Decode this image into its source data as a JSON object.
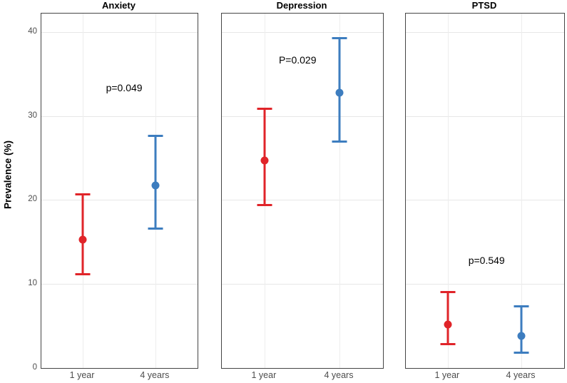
{
  "figure": {
    "y_axis_title": "Prevalence (%)",
    "x_categories": [
      "1 year",
      "4 years"
    ],
    "y_ticks": [
      0,
      10,
      20,
      30,
      40
    ]
  },
  "colors": {
    "year1": "#e02429",
    "year4": "#3d7dbf",
    "gridline": "#e7e7e7",
    "panel_border": "#454545",
    "tick_label": "#4d4d4d"
  },
  "chart_data": [
    {
      "type": "scatter",
      "title": "Anxiety",
      "p_label": "p=0.049",
      "p_label_pos": {
        "x_frac": 0.53,
        "y_value": 33.4
      },
      "xlabel": "",
      "ylabel": "Prevalence (%)",
      "ylim": [
        0,
        42.2
      ],
      "y_ticks": [
        0,
        10,
        20,
        30,
        40
      ],
      "categories": [
        "1 year",
        "4 years"
      ],
      "series": [
        {
          "name": "1 year",
          "color_key": "year1",
          "value": 15.3,
          "ci_low": 11.0,
          "ci_high": 20.8
        },
        {
          "name": "4 years",
          "color_key": "year4",
          "value": 21.7,
          "ci_low": 16.5,
          "ci_high": 27.8
        }
      ]
    },
    {
      "type": "scatter",
      "title": "Depression",
      "p_label": "P=0.029",
      "p_label_pos": {
        "x_frac": 0.47,
        "y_value": 36.7
      },
      "xlabel": "",
      "ylabel": "Prevalence (%)",
      "ylim": [
        0,
        42.2
      ],
      "y_ticks": [
        0,
        10,
        20,
        30,
        40
      ],
      "categories": [
        "1 year",
        "4 years"
      ],
      "series": [
        {
          "name": "1 year",
          "color_key": "year1",
          "value": 24.7,
          "ci_low": 19.3,
          "ci_high": 31.0
        },
        {
          "name": "4 years",
          "color_key": "year4",
          "value": 32.8,
          "ci_low": 26.8,
          "ci_high": 39.4
        }
      ]
    },
    {
      "type": "scatter",
      "title": "PTSD",
      "p_label": "p=0.549",
      "p_label_pos": {
        "x_frac": 0.51,
        "y_value": 12.8
      },
      "xlabel": "",
      "ylabel": "Prevalence (%)",
      "ylim": [
        0,
        42.2
      ],
      "y_ticks": [
        0,
        10,
        20,
        30,
        40
      ],
      "categories": [
        "1 year",
        "4 years"
      ],
      "series": [
        {
          "name": "1 year",
          "color_key": "year1",
          "value": 5.2,
          "ci_low": 2.7,
          "ci_high": 9.2
        },
        {
          "name": "4 years",
          "color_key": "year4",
          "value": 3.8,
          "ci_low": 1.7,
          "ci_high": 7.5
        }
      ]
    }
  ]
}
